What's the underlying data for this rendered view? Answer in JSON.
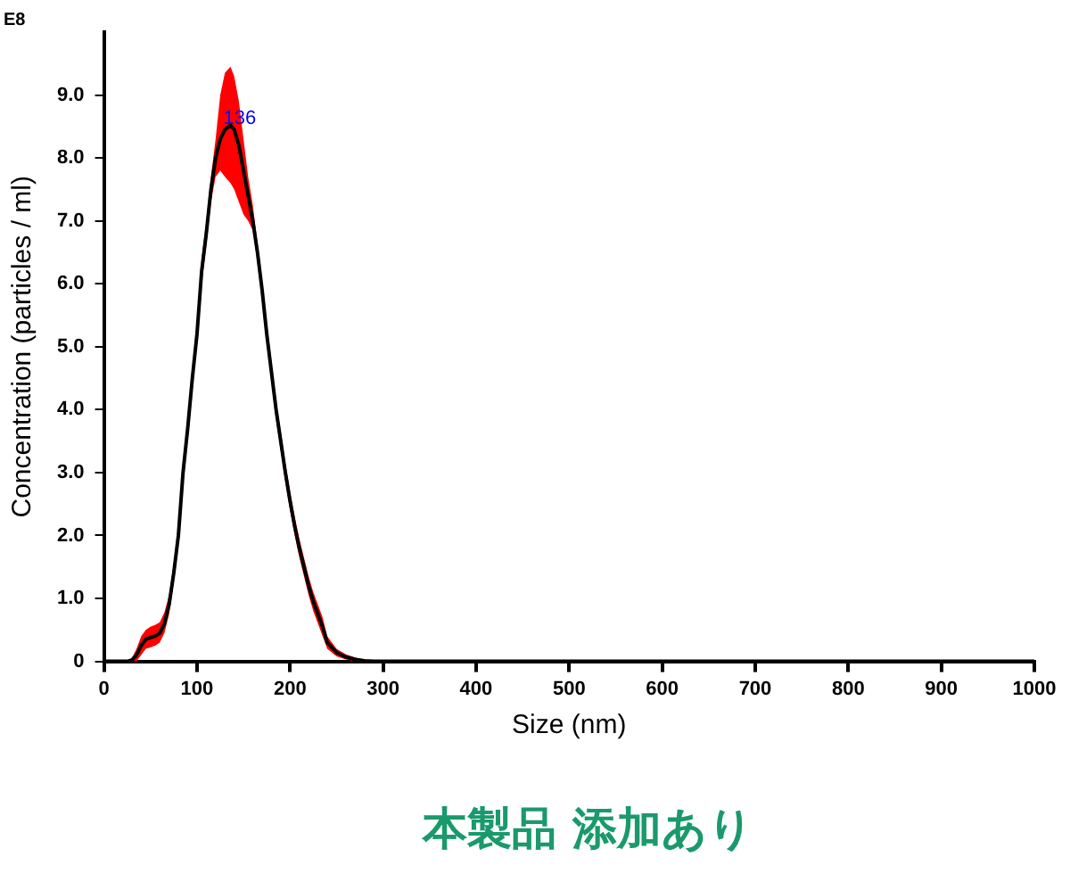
{
  "chart_data": {
    "type": "line",
    "xlabel": "Size (nm)",
    "ylabel": "Concentration (particles / ml)",
    "xlim": [
      0,
      1000
    ],
    "xticks": [
      0,
      100,
      200,
      300,
      400,
      500,
      600,
      700,
      800,
      900,
      1000
    ],
    "ylim": [
      0,
      10
    ],
    "yticks": [
      0,
      {
        "value": 1,
        "label": "1.0"
      },
      {
        "value": 2,
        "label": "2.0"
      },
      {
        "value": 3,
        "label": "3.0"
      },
      {
        "value": 4,
        "label": "4.0"
      },
      {
        "value": 5,
        "label": "5.0"
      },
      {
        "value": 6,
        "label": "6.0"
      },
      {
        "value": 7,
        "label": "7.0"
      },
      {
        "value": 8,
        "label": "8.0"
      },
      {
        "value": 9,
        "label": "9.0"
      }
    ],
    "grid": false,
    "legend": false,
    "marker": "none",
    "line_style": "solid",
    "x": [
      0,
      25,
      30,
      35,
      40,
      45,
      50,
      55,
      60,
      65,
      70,
      75,
      80,
      85,
      90,
      95,
      100,
      105,
      110,
      115,
      120,
      125,
      130,
      136,
      140,
      145,
      150,
      155,
      160,
      165,
      170,
      175,
      180,
      185,
      190,
      195,
      200,
      205,
      210,
      215,
      220,
      225,
      230,
      235,
      240,
      250,
      260,
      270,
      280,
      290,
      300,
      400,
      1000
    ],
    "series": [
      {
        "color": "#000000",
        "values": [
          0,
          0,
          0.02,
          0.1,
          0.25,
          0.35,
          0.38,
          0.4,
          0.45,
          0.6,
          0.9,
          1.4,
          2.0,
          3.0,
          3.7,
          4.5,
          5.2,
          6.2,
          6.8,
          7.5,
          8.0,
          8.3,
          8.45,
          8.52,
          8.45,
          8.2,
          7.8,
          7.4,
          7.0,
          6.5,
          5.9,
          5.2,
          4.6,
          4.0,
          3.5,
          3.0,
          2.55,
          2.15,
          1.8,
          1.5,
          1.2,
          0.95,
          0.75,
          0.55,
          0.3,
          0.14,
          0.07,
          0.03,
          0.01,
          0,
          0,
          0,
          0
        ],
        "lower": [
          0,
          0,
          0,
          0,
          0.1,
          0.2,
          0.22,
          0.25,
          0.3,
          0.45,
          0.75,
          1.25,
          1.85,
          2.85,
          3.55,
          4.35,
          5.05,
          6.0,
          6.6,
          7.3,
          7.7,
          7.8,
          7.7,
          7.6,
          7.5,
          7.3,
          7.1,
          7.0,
          6.85,
          6.35,
          5.75,
          5.05,
          4.45,
          3.85,
          3.35,
          2.85,
          2.4,
          2.0,
          1.65,
          1.35,
          1.05,
          0.8,
          0.6,
          0.4,
          0.2,
          0.08,
          0.03,
          0,
          0,
          0,
          0,
          0,
          0
        ],
        "upper": [
          0,
          0,
          0.05,
          0.2,
          0.4,
          0.5,
          0.55,
          0.58,
          0.62,
          0.78,
          1.05,
          1.55,
          2.15,
          3.15,
          3.85,
          4.65,
          5.35,
          6.4,
          7.0,
          7.7,
          8.3,
          9.0,
          9.35,
          9.45,
          9.3,
          8.9,
          8.3,
          7.7,
          7.25,
          6.65,
          6.05,
          5.35,
          4.75,
          4.15,
          3.65,
          3.15,
          2.7,
          2.3,
          1.95,
          1.65,
          1.35,
          1.1,
          0.9,
          0.7,
          0.4,
          0.2,
          0.11,
          0.06,
          0.03,
          0.01,
          0,
          0,
          0
        ]
      }
    ],
    "annotations": [
      "E8",
      {
        "text": "136",
        "x": 136,
        "y": 8.52
      },
      "本製品 添加あり"
    ]
  }
}
